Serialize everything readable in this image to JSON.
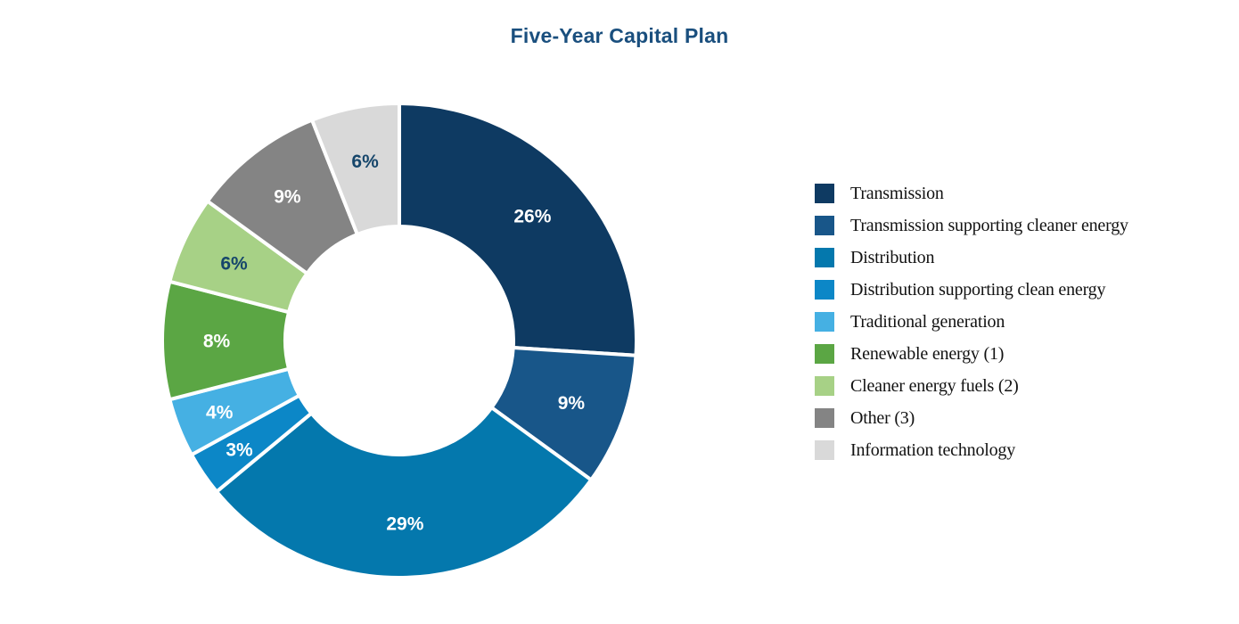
{
  "header": {
    "title": "Five-Year Capital Plan",
    "title_color": "#1A4F7E"
  },
  "chart_data": {
    "type": "pie",
    "subtype": "donut",
    "title": "Five-Year Capital Plan",
    "unit": "%",
    "start_angle_deg": 0,
    "direction": "clockwise",
    "total": 100,
    "labels_format": "percent_inside_slices",
    "legend_position": "right",
    "hole_ratio": 0.48,
    "slice_gap_color": "#ffffff",
    "segments": [
      {
        "label": "Transmission",
        "value": 26,
        "color": "#0E3A62",
        "label_text": "26%",
        "label_color": "#FFFFFF"
      },
      {
        "label": "Transmission supporting cleaner energy",
        "value": 9,
        "color": "#185689",
        "label_text": "9%",
        "label_color": "#FFFFFF"
      },
      {
        "label": "Distribution",
        "value": 29,
        "color": "#0478AD",
        "label_text": "29%",
        "label_color": "#FFFFFF"
      },
      {
        "label": "Distribution supporting clean energy",
        "value": 3,
        "color": "#0C87C7",
        "label_text": "3%",
        "label_color": "#FFFFFF"
      },
      {
        "label": "Traditional generation",
        "value": 4,
        "color": "#45B0E3",
        "label_text": "4%",
        "label_color": "#FFFFFF"
      },
      {
        "label": "Renewable energy (1)",
        "value": 8,
        "color": "#5BA644",
        "label_text": "8%",
        "label_color": "#FFFFFF"
      },
      {
        "label": "Cleaner energy fuels (2)",
        "value": 6,
        "color": "#A7D186",
        "label_text": "6%",
        "label_color": "#16466B"
      },
      {
        "label": "Other (3)",
        "value": 9,
        "color": "#848484",
        "label_text": "9%",
        "label_color": "#FFFFFF"
      },
      {
        "label": "Information technology",
        "value": 6,
        "color": "#D9D9D9",
        "label_text": "6%",
        "label_color": "#16466B"
      }
    ]
  }
}
